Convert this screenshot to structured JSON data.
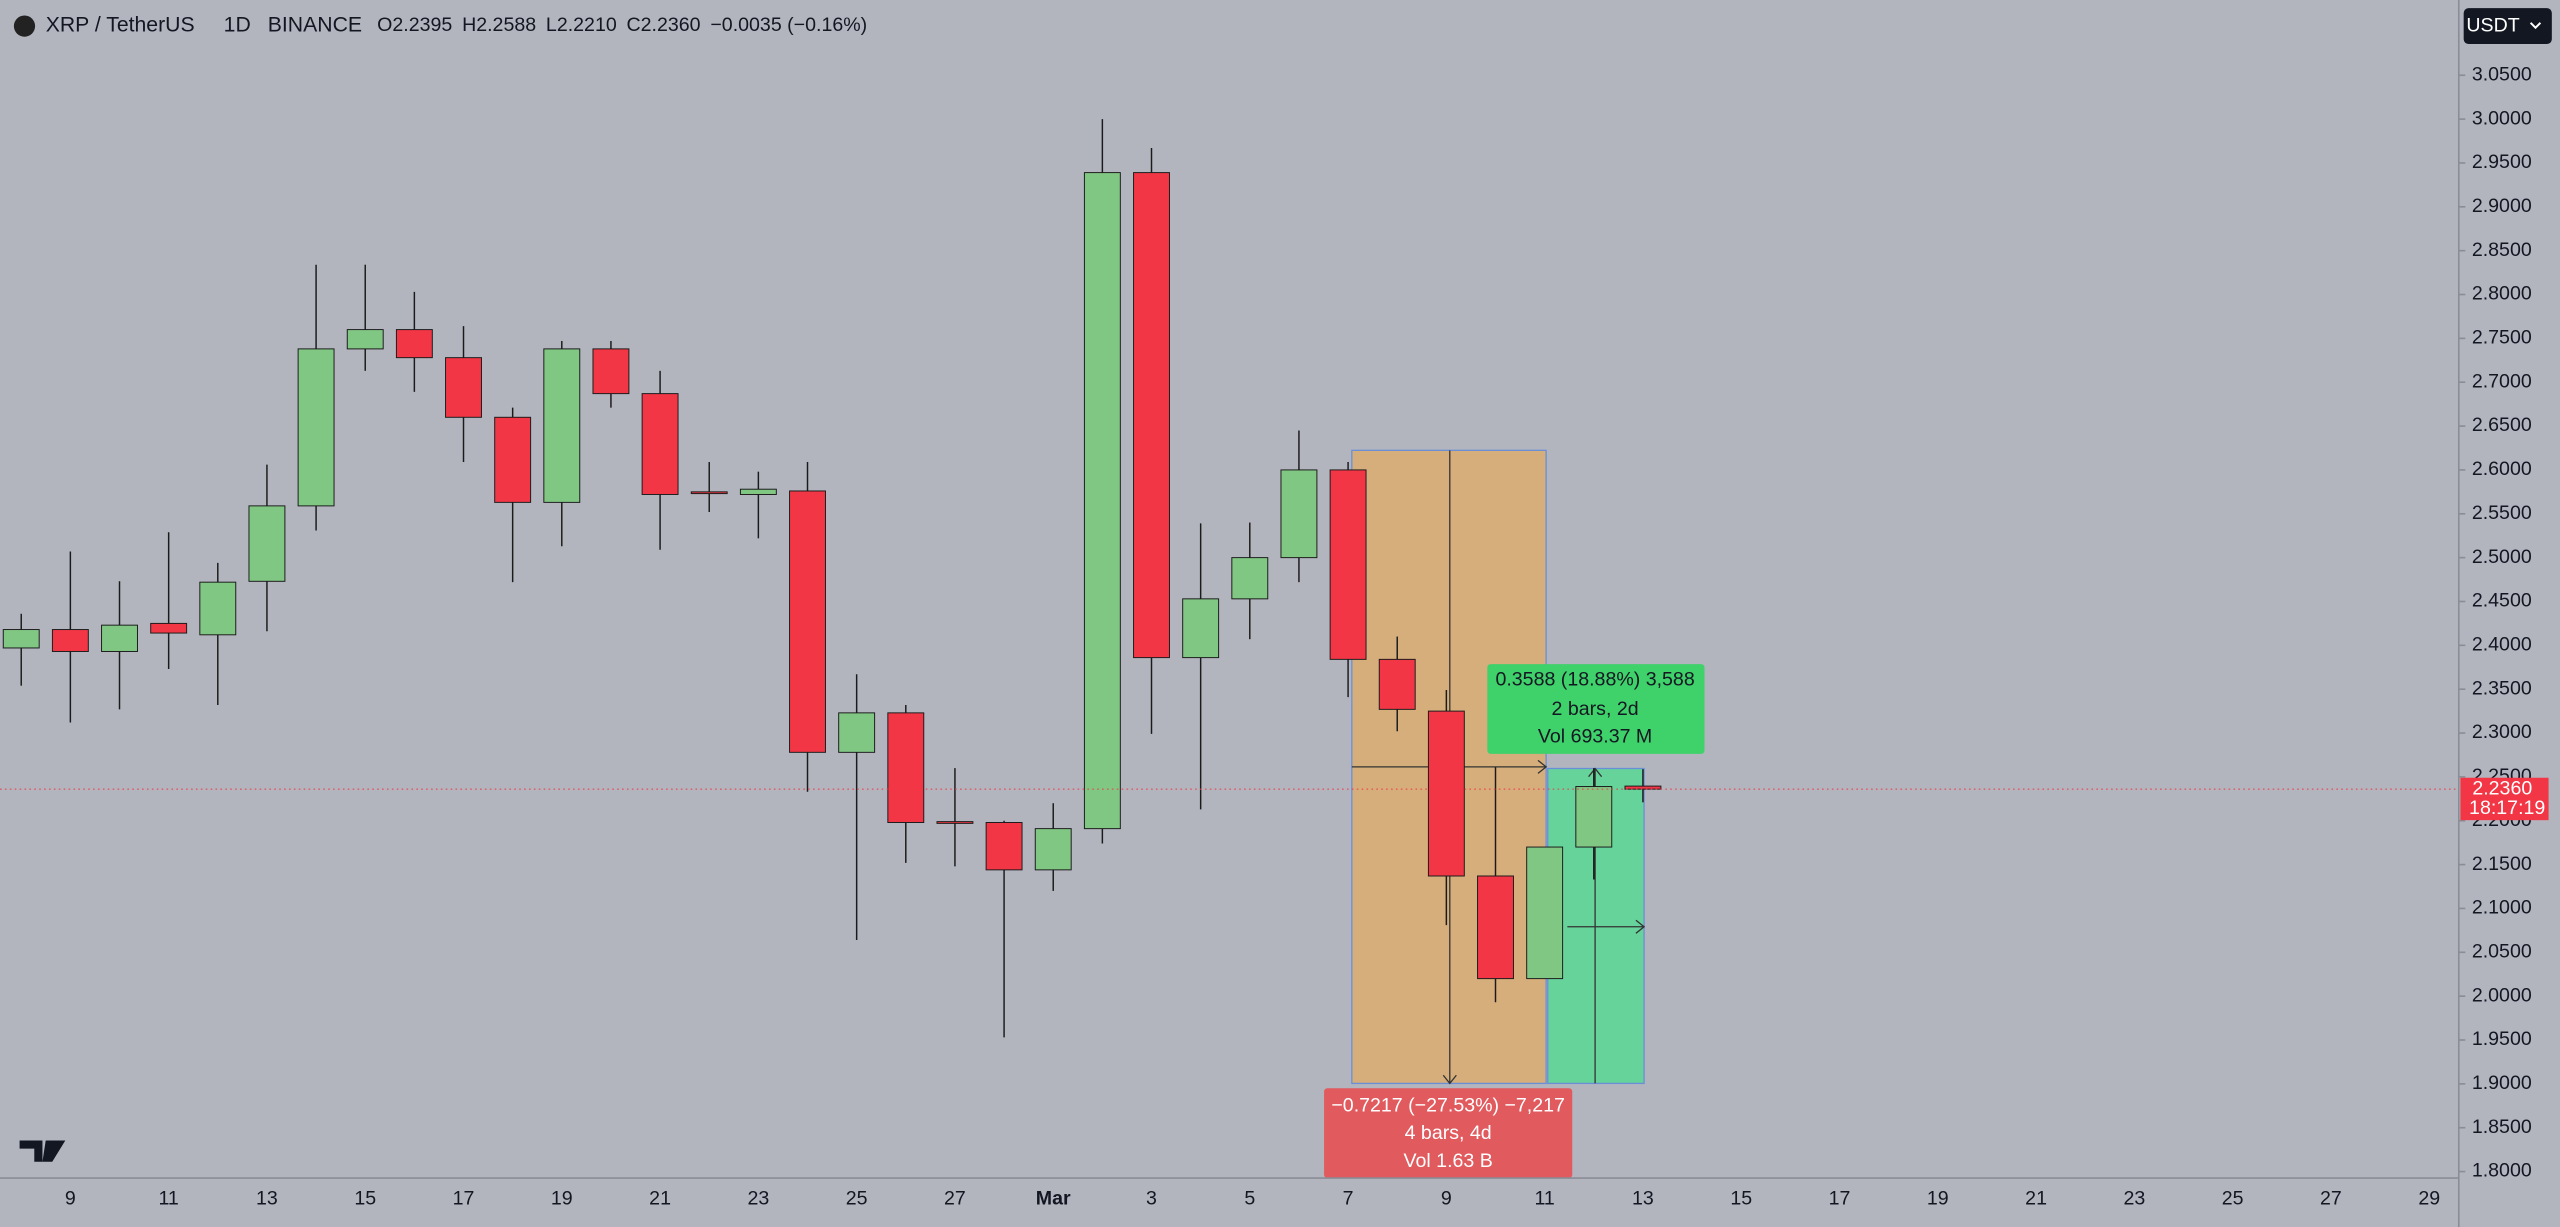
{
  "header": {
    "symbol": "XRP / TetherUS",
    "interval": "1D",
    "exchange": "BINANCE",
    "ohlc": [
      {
        "key": "O",
        "value": "2.2395"
      },
      {
        "key": "H",
        "value": "2.2588"
      },
      {
        "key": "L",
        "value": "2.2210"
      },
      {
        "key": "C",
        "value": "2.2360"
      }
    ],
    "change": "−0.0035 (−0.16%)",
    "currency": "USDT"
  },
  "chart_data": {
    "type": "candlestick",
    "categories": [
      null,
      "9",
      null,
      "11",
      null,
      "13",
      null,
      "15",
      null,
      "17",
      null,
      "19",
      null,
      "21",
      null,
      "23",
      null,
      "25",
      null,
      "27",
      null,
      "Mar",
      null,
      "3",
      null,
      "5",
      null,
      "7",
      null,
      "9",
      null,
      "11",
      null,
      "13",
      null,
      "15",
      null,
      "17",
      null,
      "19",
      null,
      "21",
      null,
      "23",
      null,
      "25",
      null,
      "27",
      null,
      "29"
    ],
    "open": [
      2.397,
      2.418,
      2.393,
      2.425,
      2.412,
      2.473,
      2.559,
      2.738,
      2.76,
      2.728,
      2.66,
      2.563,
      2.738,
      2.687,
      2.575,
      2.572,
      2.576,
      2.278,
      2.323,
      2.199,
      2.198,
      2.144,
      2.191,
      2.939,
      2.386,
      2.453,
      2.5,
      2.6,
      2.384,
      2.325,
      2.137,
      2.02,
      2.17,
      2.2395,
      null,
      null,
      null,
      null,
      null,
      null,
      null,
      null,
      null,
      null,
      null,
      null,
      null,
      null,
      null,
      null
    ],
    "high": [
      2.436,
      2.507,
      2.473,
      2.529,
      2.494,
      2.606,
      2.834,
      2.834,
      2.803,
      2.764,
      2.671,
      2.747,
      2.747,
      2.713,
      2.609,
      2.598,
      2.609,
      2.367,
      2.332,
      2.26,
      2.2,
      2.22,
      3.0,
      2.967,
      2.539,
      2.54,
      2.645,
      2.609,
      2.41,
      2.349,
      2.261,
      2.17,
      2.26,
      2.2588,
      null,
      null,
      null,
      null,
      null,
      null,
      null,
      null,
      null,
      null,
      null,
      null,
      null,
      null,
      null,
      null
    ],
    "low": [
      2.354,
      2.312,
      2.327,
      2.373,
      2.332,
      2.416,
      2.531,
      2.713,
      2.689,
      2.609,
      2.472,
      2.513,
      2.671,
      2.509,
      2.552,
      2.522,
      2.233,
      2.064,
      2.152,
      2.148,
      1.953,
      2.12,
      2.174,
      2.299,
      2.213,
      2.407,
      2.472,
      2.341,
      2.302,
      2.081,
      1.993,
      2.02,
      2.133,
      2.221,
      null,
      null,
      null,
      null,
      null,
      null,
      null,
      null,
      null,
      null,
      null,
      null,
      null,
      null,
      null,
      null
    ],
    "close": [
      2.418,
      2.393,
      2.423,
      2.414,
      2.472,
      2.559,
      2.738,
      2.76,
      2.728,
      2.66,
      2.563,
      2.738,
      2.687,
      2.572,
      2.573,
      2.578,
      2.278,
      2.323,
      2.198,
      2.197,
      2.144,
      2.191,
      2.939,
      2.386,
      2.453,
      2.5,
      2.6,
      2.384,
      2.327,
      2.137,
      2.02,
      2.17,
      2.239,
      2.236,
      null,
      null,
      null,
      null,
      null,
      null,
      null,
      null,
      null,
      null,
      null,
      null,
      null,
      null,
      null,
      null
    ],
    "up_color": "#81c784",
    "down_color": "#f23645",
    "ylim": [
      1.7926,
      3.1358
    ],
    "yticks": [
      {
        "value": 1.8,
        "label": "1.8000"
      },
      {
        "value": 1.85,
        "label": "1.8500"
      },
      {
        "value": 1.9,
        "label": "1.9000"
      },
      {
        "value": 1.95,
        "label": "1.9500"
      },
      {
        "value": 2.0,
        "label": "2.0000"
      },
      {
        "value": 2.05,
        "label": "2.0500"
      },
      {
        "value": 2.1,
        "label": "2.1000"
      },
      {
        "value": 2.15,
        "label": "2.1500"
      },
      {
        "value": 2.2,
        "label": "2.2000"
      },
      {
        "value": 2.25,
        "label": "2.2500"
      },
      {
        "value": 2.3,
        "label": "2.3000"
      },
      {
        "value": 2.35,
        "label": "2.3500"
      },
      {
        "value": 2.4,
        "label": "2.4000"
      },
      {
        "value": 2.45,
        "label": "2.4500"
      },
      {
        "value": 2.5,
        "label": "2.5000"
      },
      {
        "value": 2.55,
        "label": "2.5500"
      },
      {
        "value": 2.6,
        "label": "2.6000"
      },
      {
        "value": 2.65,
        "label": "2.6500"
      },
      {
        "value": 2.7,
        "label": "2.7000"
      },
      {
        "value": 2.75,
        "label": "2.7500"
      },
      {
        "value": 2.8,
        "label": "2.8000"
      },
      {
        "value": 2.85,
        "label": "2.8500"
      },
      {
        "value": 2.9,
        "label": "2.9000"
      },
      {
        "value": 2.95,
        "label": "2.9500"
      },
      {
        "value": 3.0,
        "label": "3.0000"
      },
      {
        "value": 3.05,
        "label": "3.0500"
      }
    ],
    "last_price": {
      "label": "2.2360",
      "countdown": "18:17:19"
    },
    "annotations": {
      "gain": [
        "0.3588 (18.88%) 3,588",
        "2 bars, 2d",
        "Vol 693.37 M"
      ],
      "loss": [
        "−0.7217 (−27.53%) −7,217",
        "4 bars, 4d",
        "Vol 1.63 B"
      ]
    }
  }
}
